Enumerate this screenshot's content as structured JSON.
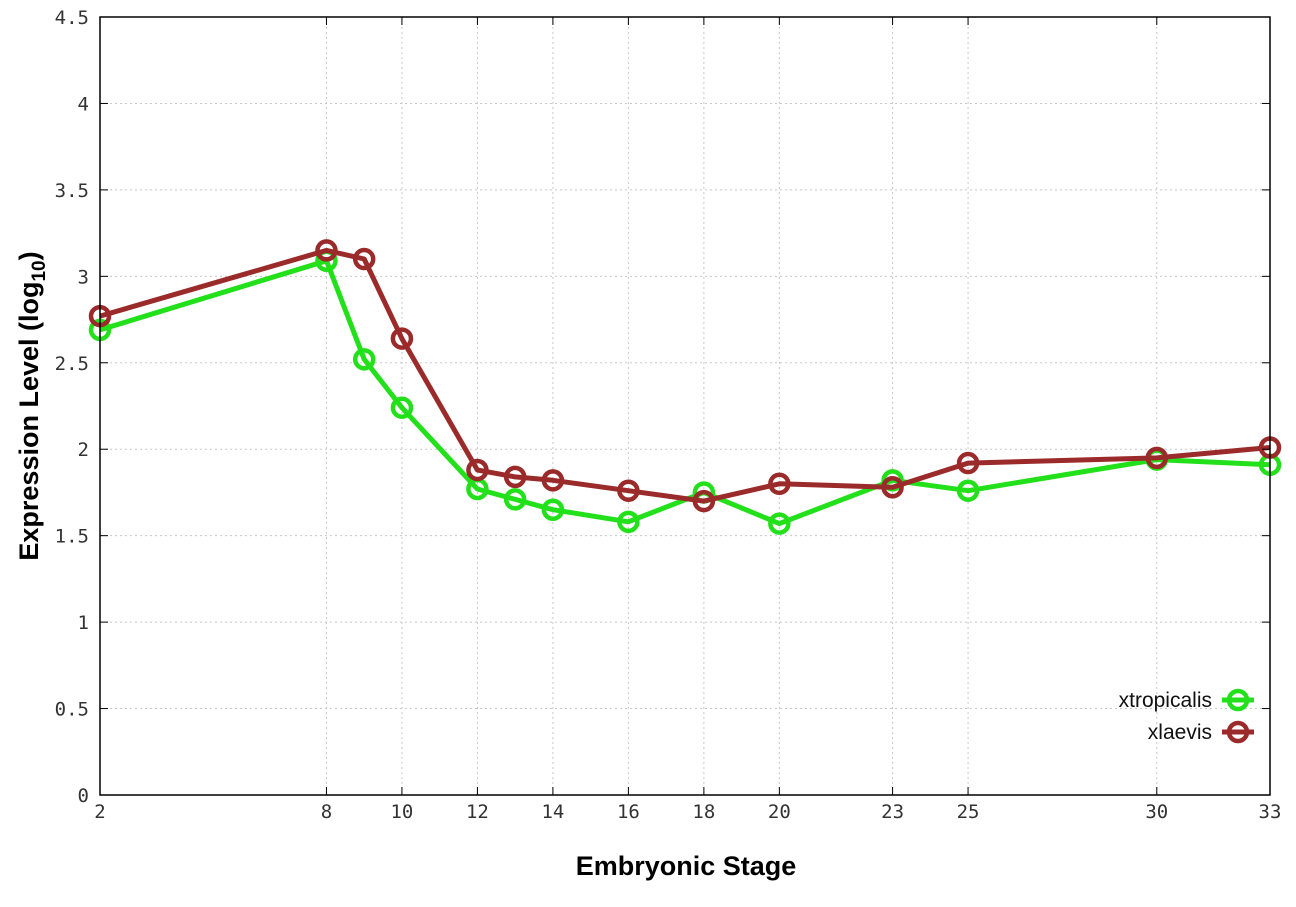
{
  "chart_data": {
    "type": "line",
    "title": "",
    "xlabel": "Embryonic Stage",
    "ylabel_main": "Expression Level (log",
    "ylabel_sub": "10",
    "ylabel_close": ")",
    "x": [
      2,
      8,
      9,
      10,
      12,
      13,
      14,
      16,
      18,
      20,
      23,
      25,
      30,
      33
    ],
    "xticks": [
      2,
      8,
      10,
      12,
      14,
      16,
      18,
      20,
      23,
      25,
      30,
      33
    ],
    "xlim": [
      2,
      33
    ],
    "ylim": [
      0,
      4.5
    ],
    "yticks": [
      0,
      0.5,
      1,
      1.5,
      2,
      2.5,
      3,
      3.5,
      4,
      4.5
    ],
    "ytick_labels": [
      "0",
      "0.5",
      "1",
      "1.5",
      "2",
      "2.5",
      "3",
      "3.5",
      "4",
      "4.5"
    ],
    "grid": true,
    "legend_position": "bottom-right",
    "series": [
      {
        "name": "xtropicalis",
        "color": "#22e01a",
        "values": [
          2.69,
          3.09,
          2.52,
          2.24,
          1.77,
          1.71,
          1.65,
          1.58,
          1.75,
          1.57,
          1.82,
          1.76,
          1.94,
          1.91
        ]
      },
      {
        "name": "xlaevis",
        "color": "#9b2a2a",
        "values": [
          2.77,
          3.15,
          3.1,
          2.64,
          1.88,
          1.84,
          1.82,
          1.76,
          1.7,
          1.8,
          1.78,
          1.92,
          1.95,
          2.01
        ]
      }
    ]
  }
}
